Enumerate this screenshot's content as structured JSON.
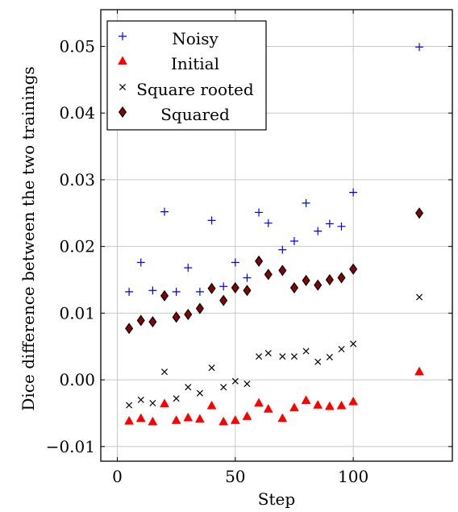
{
  "chart_data": {
    "type": "scatter",
    "xlabel": "Step",
    "ylabel": "Dice difference between the two trainings",
    "xlim": [
      -7,
      142
    ],
    "ylim": [
      -0.0122,
      0.0555
    ],
    "x_ticks": [
      0,
      50,
      100
    ],
    "x_tick_labels": [
      "0",
      "50",
      "100"
    ],
    "y_ticks": [
      -0.01,
      0.0,
      0.01,
      0.02,
      0.03,
      0.04,
      0.05
    ],
    "y_tick_labels": [
      "−0.01",
      "0.00",
      "0.01",
      "0.02",
      "0.03",
      "0.04",
      "0.05"
    ],
    "grid": true,
    "legend_position": "top-left",
    "series": [
      {
        "name": "Noisy",
        "marker": "plus",
        "color": "#0000ff",
        "points": [
          [
            5,
            0.0132
          ],
          [
            10,
            0.0176
          ],
          [
            15,
            0.0134
          ],
          [
            20,
            0.0252
          ],
          [
            25,
            0.0132
          ],
          [
            30,
            0.0168
          ],
          [
            35,
            0.0132
          ],
          [
            40,
            0.0239
          ],
          [
            45,
            0.014
          ],
          [
            50,
            0.0176
          ],
          [
            55,
            0.0153
          ],
          [
            60,
            0.0251
          ],
          [
            64,
            0.0235
          ],
          [
            70,
            0.0195
          ],
          [
            75,
            0.0208
          ],
          [
            80,
            0.0265
          ],
          [
            85,
            0.0223
          ],
          [
            90,
            0.0234
          ],
          [
            95,
            0.023
          ],
          [
            100,
            0.0281
          ],
          [
            128,
            0.0499
          ]
        ]
      },
      {
        "name": "Initial",
        "marker": "triangle",
        "color": "#ff0000",
        "points": [
          [
            5,
            -0.0062
          ],
          [
            10,
            -0.0058
          ],
          [
            15,
            -0.0063
          ],
          [
            20,
            -0.0036
          ],
          [
            25,
            -0.0061
          ],
          [
            30,
            -0.0057
          ],
          [
            35,
            -0.0059
          ],
          [
            40,
            -0.0039
          ],
          [
            45,
            -0.0063
          ],
          [
            50,
            -0.0061
          ],
          [
            55,
            -0.0055
          ],
          [
            60,
            -0.0035
          ],
          [
            64,
            -0.0044
          ],
          [
            70,
            -0.0058
          ],
          [
            75,
            -0.0042
          ],
          [
            80,
            -0.0031
          ],
          [
            85,
            -0.0038
          ],
          [
            90,
            -0.004
          ],
          [
            95,
            -0.0039
          ],
          [
            100,
            -0.0033
          ],
          [
            128,
            0.0012
          ]
        ]
      },
      {
        "name": "Square rooted",
        "marker": "cross",
        "color": "#000000",
        "points": [
          [
            5,
            -0.0038
          ],
          [
            10,
            -0.003
          ],
          [
            15,
            -0.0035
          ],
          [
            20,
            0.0012
          ],
          [
            25,
            -0.0028
          ],
          [
            30,
            -0.0011
          ],
          [
            35,
            -0.002
          ],
          [
            40,
            0.0018
          ],
          [
            45,
            -0.0011
          ],
          [
            50,
            -0.0002
          ],
          [
            55,
            -0.0006
          ],
          [
            60,
            0.0035
          ],
          [
            64,
            0.004
          ],
          [
            70,
            0.0035
          ],
          [
            75,
            0.0035
          ],
          [
            80,
            0.0043
          ],
          [
            85,
            0.0027
          ],
          [
            90,
            0.0034
          ],
          [
            95,
            0.0046
          ],
          [
            100,
            0.0054
          ],
          [
            128,
            0.0124
          ]
        ]
      },
      {
        "name": "Squared",
        "marker": "diamond",
        "color": "#8b0000",
        "points": [
          [
            5,
            0.0077
          ],
          [
            10,
            0.0089
          ],
          [
            15,
            0.0087
          ],
          [
            20,
            0.0126
          ],
          [
            25,
            0.0094
          ],
          [
            30,
            0.0098
          ],
          [
            35,
            0.0107
          ],
          [
            40,
            0.0137
          ],
          [
            45,
            0.0119
          ],
          [
            50,
            0.0138
          ],
          [
            55,
            0.0134
          ],
          [
            60,
            0.0178
          ],
          [
            64,
            0.0158
          ],
          [
            70,
            0.0164
          ],
          [
            75,
            0.0138
          ],
          [
            80,
            0.0149
          ],
          [
            85,
            0.0142
          ],
          [
            90,
            0.015
          ],
          [
            95,
            0.0153
          ],
          [
            100,
            0.0166
          ],
          [
            128,
            0.025
          ]
        ]
      }
    ]
  }
}
